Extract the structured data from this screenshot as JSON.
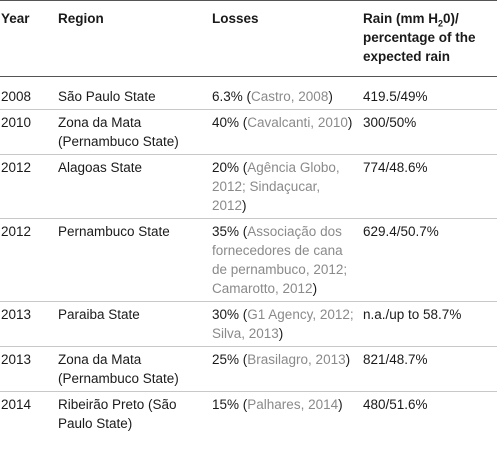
{
  "table": {
    "headers": {
      "year": "Year",
      "region": "Region",
      "losses": "Losses",
      "rain_prefix": "Rain (mm H",
      "rain_sub": "2",
      "rain_suffix": "0)/ percentage of the expected rain"
    },
    "rows": [
      {
        "year": "2008",
        "region": "São Paulo State",
        "loss": "6.3% (",
        "ref": "Castro, 2008",
        "close": ")",
        "rain": "419.5/49%"
      },
      {
        "year": "2010",
        "region": "Zona da Mata (Pernambuco State)",
        "loss": "40% (",
        "ref": "Cavalcanti, 2010",
        "close": ")",
        "rain": "300/50%"
      },
      {
        "year": "2012",
        "region": "Alagoas State",
        "loss": "20% (",
        "ref": "Agência Globo, 2012; Sindaçucar, 2012",
        "close": ")",
        "rain": "774/48.6%"
      },
      {
        "year": "2012",
        "region": "Pernambuco State",
        "loss": "35% (",
        "ref": "Associação dos fornecedores de cana de pernambuco, 2012; Camarotto, 2012",
        "close": ")",
        "rain": "629.4/50.7%"
      },
      {
        "year": "2013",
        "region": "Paraiba State",
        "loss": "30% (",
        "ref": "G1 Agency, 2012; Silva, 2013",
        "close": ")",
        "rain": "n.a./up to 58.7%"
      },
      {
        "year": "2013",
        "region": "Zona da Mata (Pernambuco State)",
        "loss": "25% (",
        "ref": "Brasilagro, 2013",
        "close": ")",
        "rain": "821/48.7%"
      },
      {
        "year": "2014",
        "region": "Ribeirão Preto (São Paulo State)",
        "loss": "15% (",
        "ref": "Palhares, 2014",
        "close": ")",
        "rain": "480/51.6%"
      }
    ]
  }
}
